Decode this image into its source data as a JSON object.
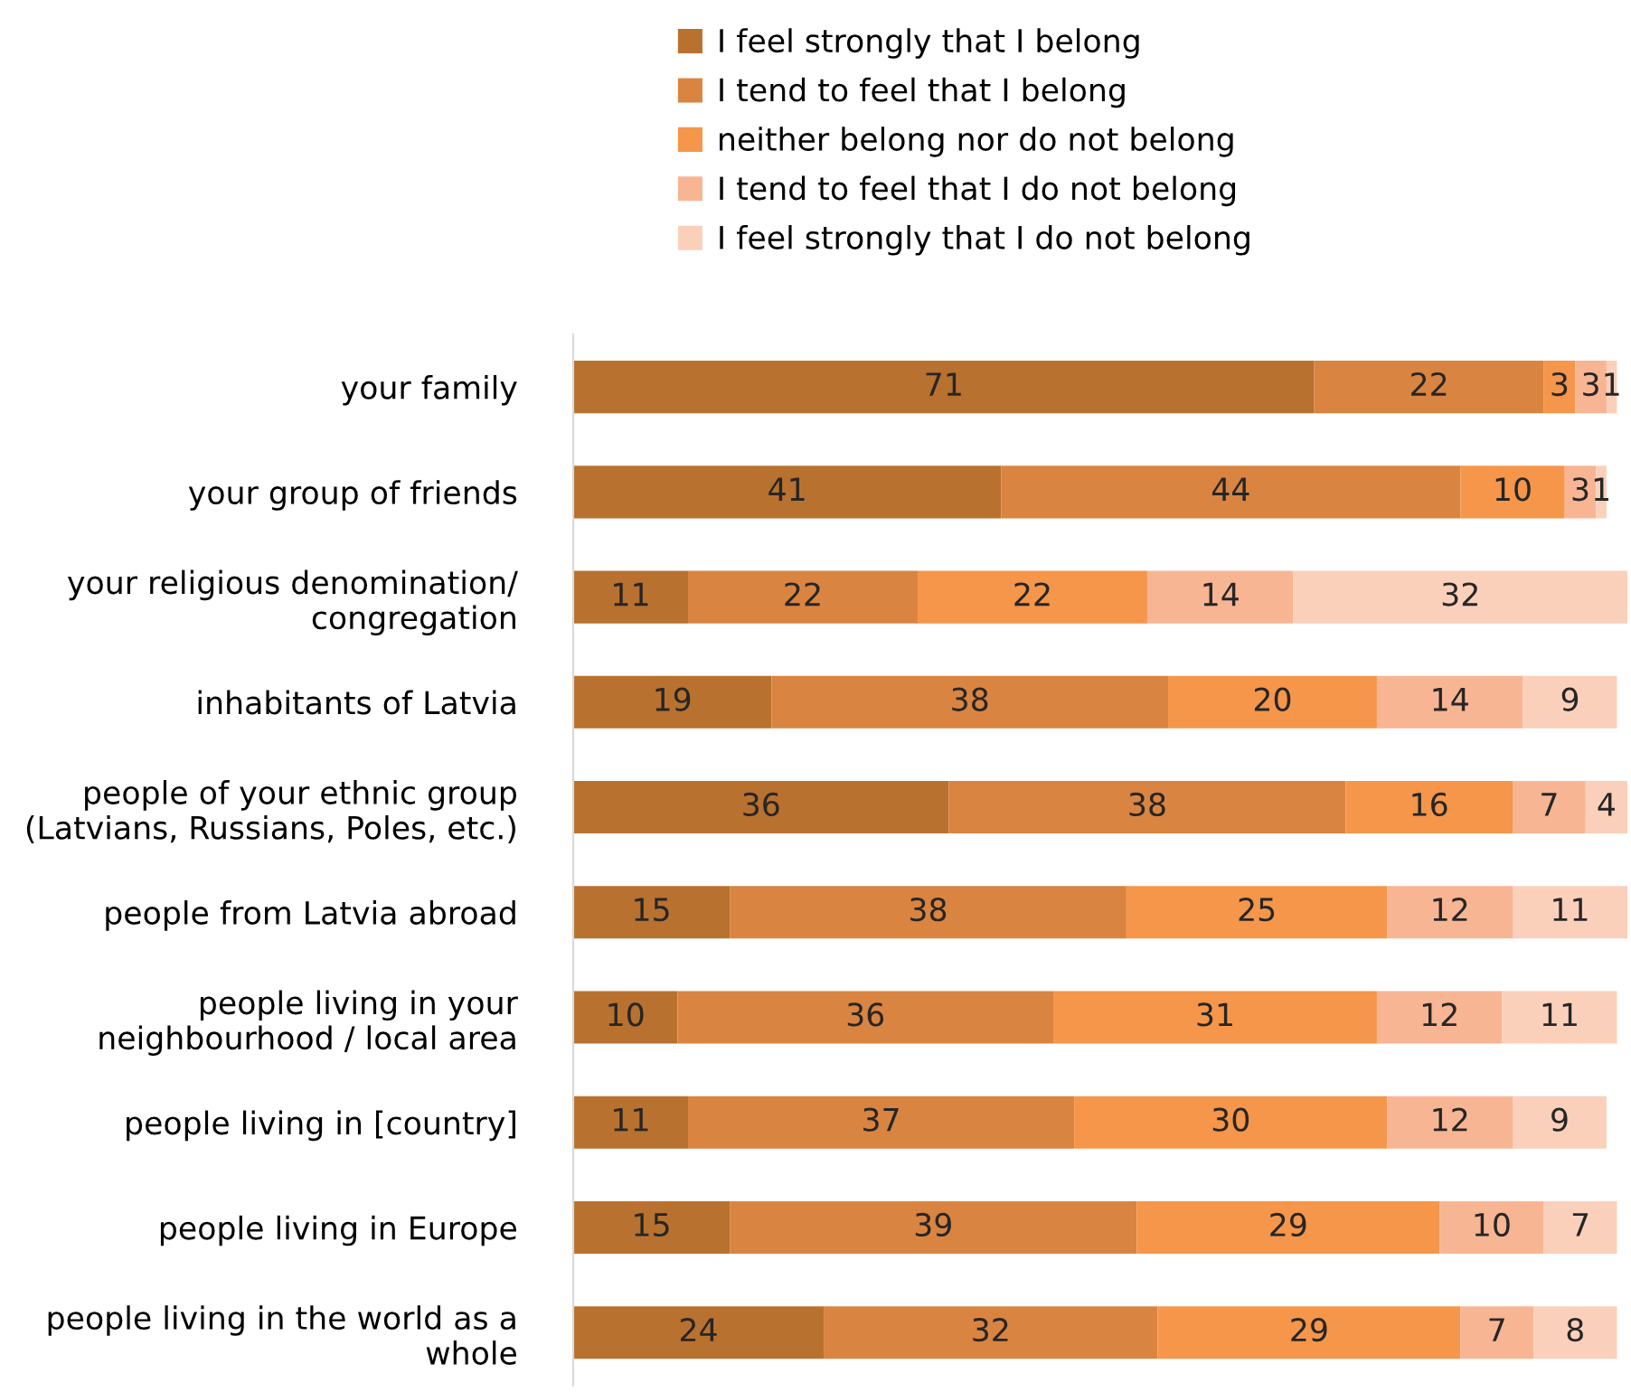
{
  "chart_data": {
    "type": "bar",
    "orientation": "horizontal",
    "stacked": true,
    "data_labels": true,
    "legend": "top",
    "grid": false,
    "categories": [
      "your family",
      "your group of friends",
      "your religious denomination/\ncongregation",
      "inhabitants of Latvia",
      "people of your ethnic group\n(Latvians, Russians, Poles, etc.)",
      "people from Latvia abroad",
      "people living in your\nneighbourhood / local area",
      "people living in [country]",
      "people living in Europe",
      "people living in the world as a\nwhole"
    ],
    "series": [
      {
        "name": "I feel strongly that I belong",
        "color": "#b9712f",
        "values": [
          71,
          41,
          11,
          19,
          36,
          15,
          10,
          11,
          15,
          24
        ]
      },
      {
        "name": "I tend to feel that I belong",
        "color": "#da8441",
        "values": [
          22,
          44,
          22,
          38,
          38,
          38,
          36,
          37,
          39,
          32
        ]
      },
      {
        "name": "neither belong nor do not belong",
        "color": "#f5964a",
        "values": [
          3,
          10,
          22,
          20,
          16,
          25,
          31,
          30,
          29,
          29
        ]
      },
      {
        "name": "I tend to feel that I do not belong",
        "color": "#f8b593",
        "values": [
          3,
          3,
          14,
          14,
          7,
          12,
          12,
          12,
          10,
          7
        ]
      },
      {
        "name": "I feel strongly that I do not belong",
        "color": "#fbd0bb",
        "values": [
          1,
          1,
          32,
          9,
          4,
          11,
          11,
          9,
          7,
          8
        ]
      }
    ]
  }
}
